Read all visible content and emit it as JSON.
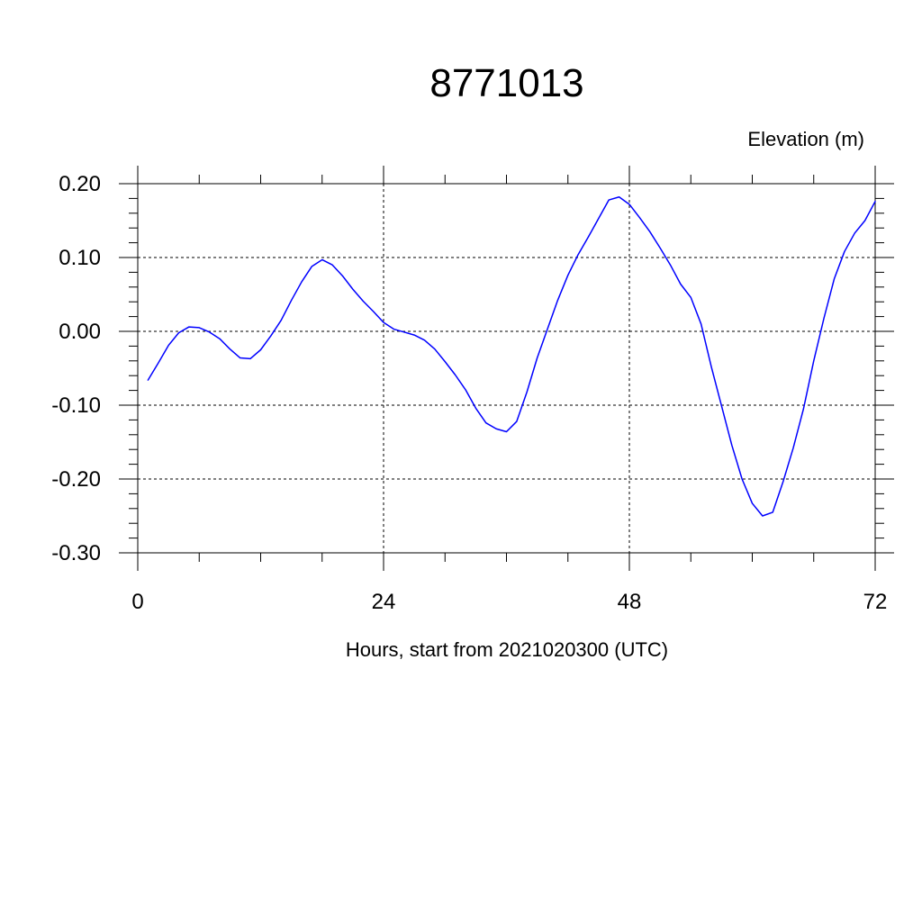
{
  "chart_data": {
    "type": "line",
    "title": "8771013",
    "ylabel": "Elevation (m)",
    "xlabel": "Hours, start from 2021020300 (UTC)",
    "xlim": [
      0,
      72
    ],
    "ylim": [
      -0.3,
      0.2
    ],
    "xticks": [
      0,
      24,
      48,
      72
    ],
    "xtick_labels": [
      "0",
      "24",
      "48",
      "72"
    ],
    "yticks": [
      0.2,
      0.1,
      0.0,
      -0.1,
      -0.2,
      -0.3
    ],
    "ytick_labels": [
      "0.20",
      "0.10",
      "0.00",
      "-0.10",
      "-0.20",
      "-0.30"
    ],
    "grid": true,
    "line_color": "#0000ff",
    "series": [
      {
        "x": [
          1,
          2,
          3,
          4,
          5,
          6,
          7,
          8,
          9,
          10,
          11,
          12,
          13,
          14,
          15,
          16,
          17,
          18,
          19,
          20,
          21,
          22,
          23,
          24,
          25,
          26,
          27,
          28,
          29,
          30,
          31,
          32,
          33,
          34,
          35,
          36,
          37,
          38,
          39,
          40,
          41,
          42,
          43,
          44,
          45,
          46,
          47,
          48,
          49,
          50,
          51,
          52,
          53,
          54,
          55,
          56,
          57,
          58,
          59,
          60,
          61,
          62,
          63,
          64,
          65,
          66,
          67,
          68,
          69,
          70,
          71,
          72
        ],
        "values": [
          -0.066,
          -0.043,
          -0.019,
          -0.002,
          0.006,
          0.005,
          -0.001,
          -0.01,
          -0.024,
          -0.036,
          -0.037,
          -0.025,
          -0.006,
          0.015,
          0.042,
          0.067,
          0.088,
          0.097,
          0.09,
          0.075,
          0.057,
          0.041,
          0.027,
          0.012,
          0.003,
          -0.001,
          -0.005,
          -0.012,
          -0.024,
          -0.041,
          -0.059,
          -0.079,
          -0.104,
          -0.124,
          -0.132,
          -0.136,
          -0.122,
          -0.082,
          -0.036,
          0.003,
          0.042,
          0.076,
          0.104,
          0.128,
          0.153,
          0.178,
          0.182,
          0.172,
          0.154,
          0.135,
          0.113,
          0.09,
          0.064,
          0.046,
          0.01,
          -0.048,
          -0.101,
          -0.154,
          -0.2,
          -0.233,
          -0.25,
          -0.245,
          -0.204,
          -0.158,
          -0.105,
          -0.04,
          0.018,
          0.071,
          0.108,
          0.133,
          0.15,
          0.176
        ]
      }
    ]
  }
}
